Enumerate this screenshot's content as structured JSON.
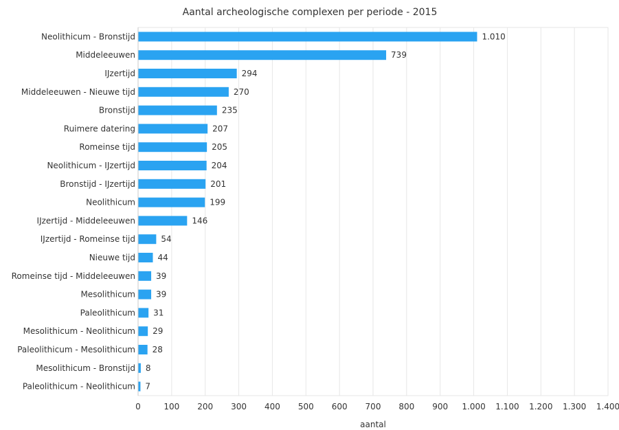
{
  "chart_data": {
    "type": "bar",
    "orientation": "horizontal",
    "title": "Aantal archeologische complexen per periode - 2015",
    "xlabel": "aantal",
    "ylabel": "",
    "xlim": [
      0,
      1400
    ],
    "x_ticks": [
      0,
      100,
      200,
      300,
      400,
      500,
      600,
      700,
      800,
      900,
      1000,
      1100,
      1200,
      1300,
      1400
    ],
    "x_tick_labels": [
      "0",
      "100",
      "200",
      "300",
      "400",
      "500",
      "600",
      "700",
      "800",
      "900",
      "1.000",
      "1.100",
      "1.200",
      "1.300",
      "1.400"
    ],
    "grid": true,
    "bar_color": "#2aa3f1",
    "categories": [
      "Neolithicum - Bronstijd",
      "Middeleeuwen",
      "IJzertijd",
      "Middeleeuwen - Nieuwe tijd",
      "Bronstijd",
      "Ruimere datering",
      "Romeinse tijd",
      "Neolithicum - IJzertijd",
      "Bronstijd - IJzertijd",
      "Neolithicum",
      "IJzertijd - Middeleeuwen",
      "IJzertijd - Romeinse tijd",
      "Nieuwe tijd",
      "Romeinse tijd - Middeleeuwen",
      "Mesolithicum",
      "Paleolithicum",
      "Mesolithicum - Neolithicum",
      "Paleolithicum - Mesolithicum",
      "Mesolithicum - Bronstijd",
      "Paleolithicum - Neolithicum"
    ],
    "values": [
      1010,
      739,
      294,
      270,
      235,
      207,
      205,
      204,
      201,
      199,
      146,
      54,
      44,
      39,
      39,
      31,
      29,
      28,
      8,
      7
    ],
    "value_labels": [
      "1.010",
      "739",
      "294",
      "270",
      "235",
      "207",
      "205",
      "204",
      "201",
      "199",
      "146",
      "54",
      "44",
      "39",
      "39",
      "31",
      "29",
      "28",
      "8",
      "7"
    ]
  }
}
